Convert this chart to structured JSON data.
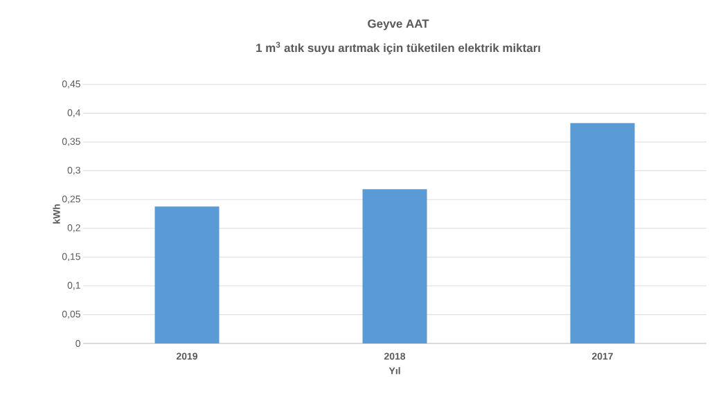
{
  "chart_data": {
    "type": "bar",
    "title": "Geyve AAT",
    "subtitle": "1 m$^{3}$ atık suyu arıtmak için tüketilen elektrik miktarı",
    "xlabel": "Yıl",
    "ylabel": "kWh",
    "categories": [
      "2019",
      "2018",
      "2017"
    ],
    "values": [
      0.238,
      0.268,
      0.383
    ],
    "color": "#5b9bd5",
    "ylim": [
      0,
      0.45
    ],
    "yticks": [
      0,
      {
        "value": 0.05,
        "label": "0,05"
      },
      {
        "value": 0.1,
        "label": "0,1"
      },
      {
        "value": 0.15,
        "label": "0,15"
      },
      {
        "value": 0.2,
        "label": "0,2"
      },
      {
        "value": 0.25,
        "label": "0,25"
      },
      {
        "value": 0.3,
        "label": "0,3"
      },
      {
        "value": 0.35,
        "label": "0,35"
      },
      {
        "value": 0.4,
        "label": "0,4"
      },
      {
        "value": 0.45,
        "label": "0,45"
      }
    ],
    "grid": "y"
  }
}
